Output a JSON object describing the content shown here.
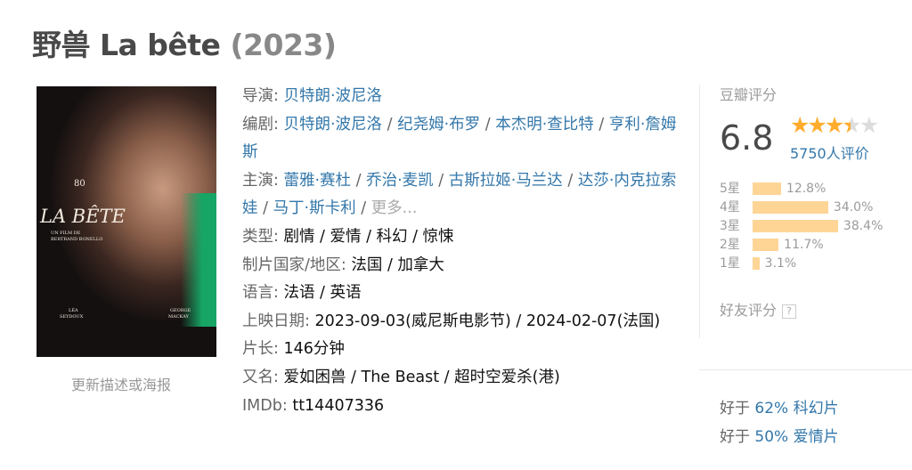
{
  "title": {
    "name": "野兽 La bête",
    "year": "(2023)"
  },
  "poster": {
    "title": "LA BÊTE",
    "byline1": "UN FILM DE",
    "byline2": "BERTRAND BONELLO",
    "actor1a": "LÉA",
    "actor1b": "SEYDOUX",
    "actor2a": "GEORGE",
    "actor2b": "MACKAY",
    "festival": "80"
  },
  "update_link": "更新描述或海报",
  "info": {
    "director_label": "导演:",
    "director": [
      "贝特朗·波尼洛"
    ],
    "writer_label": "编剧:",
    "writers": [
      "贝特朗·波尼洛",
      "纪尧姆·布罗",
      "本杰明·查比特",
      "亨利·詹姆斯"
    ],
    "cast_label": "主演:",
    "cast": [
      "蕾雅·赛杜",
      "乔治·麦凯",
      "古斯拉姬·马兰达",
      "达莎·内克拉索娃",
      "马丁·斯卡利"
    ],
    "cast_more": "更多...",
    "genre_label": "类型:",
    "genre": "剧情 / 爱情 / 科幻 / 惊悚",
    "country_label": "制片国家/地区:",
    "country": "法国 / 加拿大",
    "language_label": "语言:",
    "language": "法语 / 英语",
    "release_label": "上映日期:",
    "release": "2023-09-03(威尼斯电影节) / 2024-02-07(法国)",
    "runtime_label": "片长:",
    "runtime": "146分钟",
    "aka_label": "又名:",
    "aka": "爱如困兽 / The Beast / 超时空爱杀(港)",
    "imdb_label": "IMDb:",
    "imdb": "tt14407336"
  },
  "rating": {
    "title": "豆瓣评分",
    "score": "6.8",
    "stars": 3.5,
    "count": "5750人评价",
    "dist": [
      {
        "label": "5星",
        "pct": "12.8%",
        "value": 12.8
      },
      {
        "label": "4星",
        "pct": "34.0%",
        "value": 34.0
      },
      {
        "label": "3星",
        "pct": "38.4%",
        "value": 38.4
      },
      {
        "label": "2星",
        "pct": "11.7%",
        "value": 11.7
      },
      {
        "label": "1星",
        "pct": "3.1%",
        "value": 3.1
      }
    ],
    "friend_label": "好友评分",
    "help": "?"
  },
  "better_than": [
    {
      "prefix": "好于",
      "pct": "62%",
      "genre": "科幻片"
    },
    {
      "prefix": "好于",
      "pct": "50%",
      "genre": "爱情片"
    }
  ],
  "colors": {
    "link": "#3377aa",
    "star": "#ffac2d",
    "bar": "#ffd596"
  }
}
